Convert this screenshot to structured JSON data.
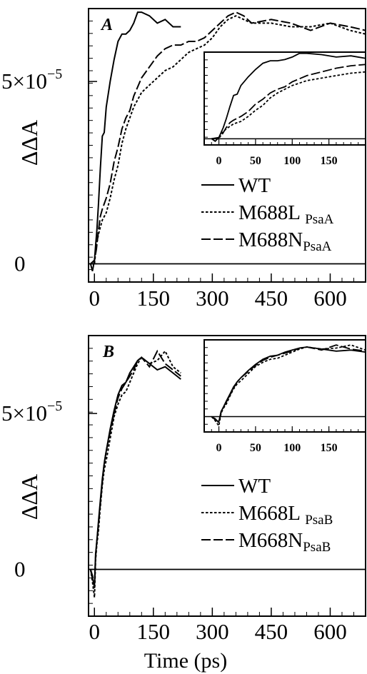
{
  "chart_data": [
    {
      "type": "line",
      "panel_label": "A",
      "ylabel": "ΔΔA",
      "xlabel": "",
      "x_ticks": [
        "0",
        "150",
        "300",
        "450",
        "600"
      ],
      "y_ticks": [
        {
          "value": 0,
          "label": "0"
        },
        {
          "value": 5e-05,
          "label_mantissa": "5×10",
          "label_exponent": "−5"
        }
      ],
      "xlim": [
        -15,
        690
      ],
      "ylim": [
        -5e-06,
        7e-05
      ],
      "baseline": 0,
      "legend": [
        {
          "label": "WT",
          "subscript": "",
          "style": "solid"
        },
        {
          "label": "M688L ",
          "subscript": "PsaA",
          "style": "dotted"
        },
        {
          "label": "M688N",
          "subscript": "PsaA",
          "style": "dashed"
        }
      ],
      "series": [
        {
          "name": "WT",
          "style": "solid",
          "x": [
            -10,
            -5,
            0,
            3,
            6,
            10,
            15,
            20,
            25,
            30,
            40,
            50,
            60,
            70,
            80,
            90,
            100,
            110,
            120,
            140,
            160,
            180,
            200,
            220
          ],
          "y": [
            0.0,
            -2e-06,
            1e-06,
            5e-06,
            9e-06,
            1.6e-05,
            2.6e-05,
            3.5e-05,
            3.6e-05,
            4.3e-05,
            5e-05,
            5.6e-05,
            6.1e-05,
            6.3e-05,
            6.3e-05,
            6.4e-05,
            6.6e-05,
            6.9e-05,
            6.9e-05,
            6.8e-05,
            6.6e-05,
            6.7e-05,
            6.5e-05,
            6.5e-05
          ]
        },
        {
          "name": "M688L PsaA",
          "style": "dotted",
          "x": [
            -10,
            0,
            5,
            10,
            15,
            20,
            30,
            40,
            50,
            60,
            70,
            80,
            90,
            100,
            120,
            140,
            160,
            180,
            200,
            220,
            240,
            260,
            280,
            300,
            320,
            340,
            360,
            380,
            400,
            450,
            500,
            550,
            600,
            650,
            690
          ],
          "y": [
            0.0,
            0.0,
            5e-06,
            8e-06,
            1e-05,
            1.2e-05,
            1.4e-05,
            1.8e-05,
            2.3e-05,
            2.7e-05,
            3.3e-05,
            3.7e-05,
            4e-05,
            4.3e-05,
            4.7e-05,
            4.9e-05,
            5.1e-05,
            5.3e-05,
            5.4e-05,
            5.6e-05,
            5.8e-05,
            5.9e-05,
            6e-05,
            6.2e-05,
            6.5e-05,
            6.7e-05,
            6.8e-05,
            6.7e-05,
            6.6e-05,
            6.6e-05,
            6.5e-05,
            6.5e-05,
            6.6e-05,
            6.4e-05,
            6.3e-05
          ]
        },
        {
          "name": "M688N PsaA",
          "style": "dashed",
          "x": [
            -10,
            0,
            5,
            10,
            15,
            20,
            30,
            40,
            50,
            60,
            70,
            80,
            90,
            100,
            120,
            140,
            160,
            180,
            200,
            220,
            240,
            260,
            280,
            300,
            320,
            340,
            360,
            380,
            400,
            450,
            500,
            550,
            600,
            650,
            690
          ],
          "y": [
            0.0,
            1e-06,
            4e-06,
            9e-06,
            1.3e-05,
            1.5e-05,
            1.8e-05,
            2.2e-05,
            2.8e-05,
            3.2e-05,
            3.7e-05,
            4e-05,
            4.2e-05,
            4.6e-05,
            5.1e-05,
            5.4e-05,
            5.7e-05,
            5.9e-05,
            6e-05,
            6e-05,
            6.1e-05,
            6.1e-05,
            6.2e-05,
            6.4e-05,
            6.6e-05,
            6.8e-05,
            6.9e-05,
            6.8e-05,
            6.6e-05,
            6.7e-05,
            6.6e-05,
            6.4e-05,
            6.6e-05,
            6.5e-05,
            6.4e-05
          ]
        }
      ],
      "inset": {
        "x_ticks": [
          "0",
          "50",
          "100",
          "150"
        ],
        "xlim": [
          -20,
          200
        ],
        "ylim": [
          -5e-06,
          7e-05
        ],
        "baseline": 0
      }
    },
    {
      "type": "line",
      "panel_label": "B",
      "ylabel": "ΔΔA",
      "xlabel": "Time (ps)",
      "x_ticks": [
        "0",
        "150",
        "300",
        "450",
        "600"
      ],
      "y_ticks": [
        {
          "value": 0,
          "label": "0"
        },
        {
          "value": 5e-05,
          "label_mantissa": "5×10",
          "label_exponent": "−5"
        }
      ],
      "xlim": [
        -15,
        690
      ],
      "ylim": [
        -1.5e-05,
        7.5e-05
      ],
      "baseline": 0,
      "legend": [
        {
          "label": "WT",
          "subscript": "",
          "style": "solid"
        },
        {
          "label": "M668L ",
          "subscript": "PsaB",
          "style": "dotted"
        },
        {
          "label": "M668N",
          "subscript": "PsaB",
          "style": "dashed"
        }
      ],
      "series": [
        {
          "name": "WT",
          "style": "solid",
          "x": [
            -10,
            -5,
            0,
            3,
            6,
            10,
            15,
            20,
            25,
            30,
            40,
            50,
            60,
            70,
            80,
            90,
            100,
            110,
            120,
            140,
            160,
            180,
            200,
            220
          ],
          "y": [
            0.0,
            -3e-06,
            -5e-06,
            5e-06,
            9e-06,
            1.5e-05,
            2.2e-05,
            2.9e-05,
            3.4e-05,
            3.8e-05,
            4.5e-05,
            5.1e-05,
            5.6e-05,
            5.9e-05,
            6e-05,
            6.3e-05,
            6.5e-05,
            6.7e-05,
            6.8e-05,
            6.6e-05,
            6.4e-05,
            6.5e-05,
            6.3e-05,
            6.1e-05
          ]
        },
        {
          "name": "M668L PsaB",
          "style": "dotted",
          "x": [
            -10,
            -5,
            0,
            3,
            6,
            10,
            15,
            20,
            25,
            30,
            40,
            50,
            60,
            70,
            80,
            90,
            100,
            110,
            120,
            140,
            160,
            180,
            200,
            220
          ],
          "y": [
            0.0,
            -4e-06,
            -9e-06,
            3e-06,
            8e-06,
            1.2e-05,
            2e-05,
            2.7e-05,
            3.2e-05,
            3.5e-05,
            4.2e-05,
            4.9e-05,
            5.3e-05,
            5.6e-05,
            5.7e-05,
            6e-05,
            6.3e-05,
            6.6e-05,
            6.8e-05,
            6.6e-05,
            6.7e-05,
            7e-05,
            6.5e-05,
            6.3e-05
          ]
        },
        {
          "name": "M668N PsaB",
          "style": "dashed",
          "x": [
            -10,
            -5,
            0,
            3,
            6,
            10,
            15,
            20,
            25,
            30,
            40,
            50,
            60,
            70,
            80,
            90,
            100,
            110,
            120,
            140,
            160,
            180,
            200,
            220
          ],
          "y": [
            0.0,
            -2e-06,
            -6e-06,
            4e-06,
            9e-06,
            1.4e-05,
            2.1e-05,
            2.8e-05,
            3.4e-05,
            3.8e-05,
            4.4e-05,
            5e-05,
            5.5e-05,
            5.8e-05,
            6e-05,
            6.2e-05,
            6.4e-05,
            6.7e-05,
            6.8e-05,
            6.5e-05,
            7e-05,
            6.6e-05,
            6.4e-05,
            6.2e-05
          ]
        }
      ],
      "inset": {
        "x_ticks": [
          "0",
          "50",
          "100",
          "150"
        ],
        "xlim": [
          -20,
          200
        ],
        "ylim": [
          -1.5e-05,
          7.5e-05
        ],
        "baseline": 0
      }
    }
  ]
}
